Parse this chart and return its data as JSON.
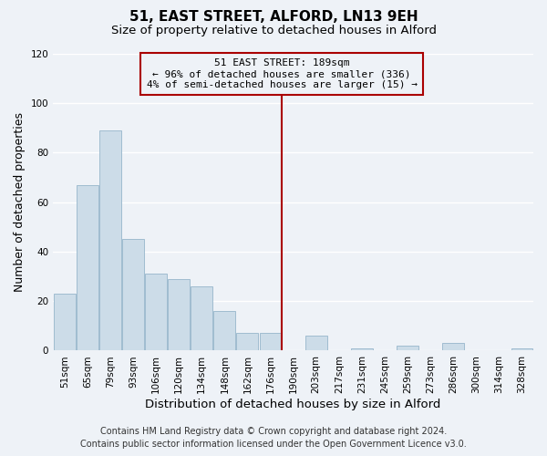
{
  "title": "51, EAST STREET, ALFORD, LN13 9EH",
  "subtitle": "Size of property relative to detached houses in Alford",
  "xlabel": "Distribution of detached houses by size in Alford",
  "ylabel": "Number of detached properties",
  "categories": [
    "51sqm",
    "65sqm",
    "79sqm",
    "93sqm",
    "106sqm",
    "120sqm",
    "134sqm",
    "148sqm",
    "162sqm",
    "176sqm",
    "190sqm",
    "203sqm",
    "217sqm",
    "231sqm",
    "245sqm",
    "259sqm",
    "273sqm",
    "286sqm",
    "300sqm",
    "314sqm",
    "328sqm"
  ],
  "values": [
    23,
    67,
    89,
    45,
    31,
    29,
    26,
    16,
    7,
    7,
    0,
    6,
    0,
    1,
    0,
    2,
    0,
    3,
    0,
    0,
    1
  ],
  "bar_color": "#ccdce8",
  "bar_edge_color": "#a0bcd0",
  "vline_color": "#aa0000",
  "annotation_text": "51 EAST STREET: 189sqm\n← 96% of detached houses are smaller (336)\n4% of semi-detached houses are larger (15) →",
  "annotation_box_edgecolor": "#aa0000",
  "ylim": [
    0,
    120
  ],
  "yticks": [
    0,
    20,
    40,
    60,
    80,
    100,
    120
  ],
  "footer": "Contains HM Land Registry data © Crown copyright and database right 2024.\nContains public sector information licensed under the Open Government Licence v3.0.",
  "background_color": "#eef2f7",
  "grid_color": "#ffffff",
  "title_fontsize": 11,
  "subtitle_fontsize": 9.5,
  "xlabel_fontsize": 9.5,
  "ylabel_fontsize": 9,
  "tick_fontsize": 7.5,
  "annotation_fontsize": 8,
  "footer_fontsize": 7
}
